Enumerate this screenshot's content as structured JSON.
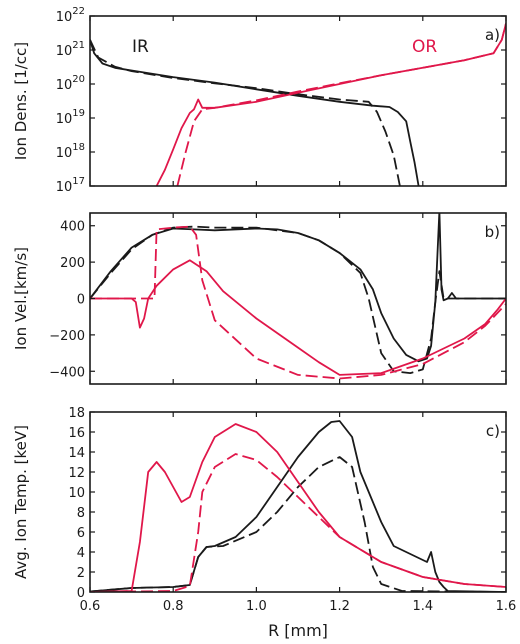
{
  "colors": {
    "IR": "#1a1a1a",
    "OR": "#e0174a"
  },
  "xaxis": {
    "label": "R [mm]",
    "min": 0.6,
    "max": 1.6,
    "ticks": [
      "0.6",
      "0.8",
      "1.0",
      "1.2",
      "1.4",
      "1.6"
    ]
  },
  "chart_data": [
    {
      "type": "line",
      "panel_label": "a)",
      "ylabel": "Ion Dens. [1/cc]",
      "yscale": "log",
      "ylim": [
        1e+17,
        1e+22
      ],
      "yticks": [
        {
          "base": "10",
          "exp": "17",
          "v": 1e+17
        },
        {
          "base": "10",
          "exp": "18",
          "v": 1e+18
        },
        {
          "base": "10",
          "exp": "19",
          "v": 1e+19
        },
        {
          "base": "10",
          "exp": "20",
          "v": 1e+20
        },
        {
          "base": "10",
          "exp": "21",
          "v": 1e+21
        },
        {
          "base": "10",
          "exp": "22",
          "v": 1e+22
        }
      ],
      "annotations": [
        "IR",
        "OR"
      ],
      "series": [
        {
          "group": "IR",
          "style": "solid",
          "points": [
            [
              0.6,
              2e+21
            ],
            [
              0.61,
              8e+20
            ],
            [
              0.63,
              4e+20
            ],
            [
              0.66,
              3e+20
            ],
            [
              0.7,
              2.5e+20
            ],
            [
              0.8,
              1.6e+20
            ],
            [
              0.9,
              1.1e+20
            ],
            [
              1.0,
              7e+19
            ],
            [
              1.1,
              4.5e+19
            ],
            [
              1.2,
              3e+19
            ],
            [
              1.28,
              2.3e+19
            ],
            [
              1.32,
              2.1e+19
            ],
            [
              1.34,
              1.5e+19
            ],
            [
              1.36,
              8e+18
            ],
            [
              1.37,
              2e+18
            ],
            [
              1.38,
              5e+17
            ],
            [
              1.39,
              1e+17
            ]
          ]
        },
        {
          "group": "IR",
          "style": "dashed",
          "points": [
            [
              0.6,
              2e+21
            ],
            [
              0.62,
              6e+20
            ],
            [
              0.66,
              3.2e+20
            ],
            [
              0.7,
              2.4e+20
            ],
            [
              0.8,
              1.5e+20
            ],
            [
              0.9,
              1.05e+20
            ],
            [
              1.0,
              7.5e+19
            ],
            [
              1.1,
              5e+19
            ],
            [
              1.2,
              3.5e+19
            ],
            [
              1.27,
              3e+19
            ],
            [
              1.29,
              1.5e+19
            ],
            [
              1.31,
              4e+18
            ],
            [
              1.33,
              8e+17
            ],
            [
              1.345,
              1e+17
            ]
          ]
        },
        {
          "group": "OR",
          "style": "solid",
          "points": [
            [
              0.76,
              1e+17
            ],
            [
              0.78,
              3e+17
            ],
            [
              0.8,
              1.2e+18
            ],
            [
              0.82,
              5e+18
            ],
            [
              0.84,
              1.4e+19
            ],
            [
              0.85,
              1.8e+19
            ],
            [
              0.86,
              3.5e+19
            ],
            [
              0.87,
              2e+19
            ],
            [
              0.9,
              2e+19
            ],
            [
              1.0,
              3e+19
            ],
            [
              1.1,
              5.5e+19
            ],
            [
              1.2,
              1e+20
            ],
            [
              1.3,
              1.8e+20
            ],
            [
              1.4,
              3e+20
            ],
            [
              1.5,
              5e+20
            ],
            [
              1.57,
              8e+20
            ],
            [
              1.59,
              2e+21
            ],
            [
              1.6,
              6e+21
            ]
          ]
        },
        {
          "group": "OR",
          "style": "dashed",
          "points": [
            [
              0.81,
              1e+17
            ],
            [
              0.83,
              1e+18
            ],
            [
              0.85,
              8e+18
            ],
            [
              0.87,
              1.8e+19
            ],
            [
              0.9,
              2e+19
            ],
            [
              1.0,
              3.3e+19
            ],
            [
              1.1,
              6e+19
            ],
            [
              1.2,
              1.05e+20
            ],
            [
              1.3,
              1.8e+20
            ],
            [
              1.4,
              3e+20
            ],
            [
              1.5,
              5e+20
            ],
            [
              1.57,
              8e+20
            ],
            [
              1.59,
              2e+21
            ],
            [
              1.6,
              6e+21
            ]
          ]
        }
      ]
    },
    {
      "type": "line",
      "panel_label": "b)",
      "ylabel": "Ion Vel.[km/s]",
      "yscale": "linear",
      "ylim": [
        -470,
        470
      ],
      "yticks": [
        {
          "label": "−400",
          "v": -400
        },
        {
          "label": "−200",
          "v": -200
        },
        {
          "label": "0",
          "v": 0
        },
        {
          "label": "200",
          "v": 200
        },
        {
          "label": "400",
          "v": 400
        }
      ],
      "series": [
        {
          "group": "IR",
          "style": "solid",
          "points": [
            [
              0.6,
              0
            ],
            [
              0.65,
              150
            ],
            [
              0.7,
              280
            ],
            [
              0.75,
              350
            ],
            [
              0.8,
              385
            ],
            [
              0.85,
              380
            ],
            [
              0.9,
              375
            ],
            [
              1.0,
              385
            ],
            [
              1.05,
              380
            ],
            [
              1.1,
              360
            ],
            [
              1.15,
              320
            ],
            [
              1.2,
              250
            ],
            [
              1.25,
              160
            ],
            [
              1.28,
              50
            ],
            [
              1.3,
              -80
            ],
            [
              1.33,
              -220
            ],
            [
              1.36,
              -310
            ],
            [
              1.39,
              -345
            ],
            [
              1.41,
              -330
            ],
            [
              1.42,
              -260
            ],
            [
              1.43,
              -20
            ],
            [
              1.44,
              480
            ],
            [
              1.445,
              50
            ],
            [
              1.45,
              -10
            ],
            [
              1.46,
              0
            ],
            [
              1.47,
              30
            ],
            [
              1.48,
              0
            ],
            [
              1.6,
              0
            ]
          ]
        },
        {
          "group": "IR",
          "style": "dashed",
          "points": [
            [
              0.6,
              0
            ],
            [
              0.65,
              140
            ],
            [
              0.7,
              270
            ],
            [
              0.75,
              350
            ],
            [
              0.8,
              390
            ],
            [
              0.85,
              395
            ],
            [
              0.9,
              390
            ],
            [
              1.0,
              390
            ],
            [
              1.1,
              360
            ],
            [
              1.15,
              320
            ],
            [
              1.2,
              250
            ],
            [
              1.25,
              140
            ],
            [
              1.27,
              0
            ],
            [
              1.3,
              -300
            ],
            [
              1.33,
              -400
            ],
            [
              1.37,
              -410
            ],
            [
              1.4,
              -390
            ],
            [
              1.42,
              -220
            ],
            [
              1.43,
              -20
            ],
            [
              1.44,
              150
            ],
            [
              1.45,
              0
            ],
            [
              1.6,
              0
            ]
          ]
        },
        {
          "group": "OR",
          "style": "solid",
          "points": [
            [
              0.6,
              0
            ],
            [
              0.7,
              0
            ],
            [
              0.71,
              -20
            ],
            [
              0.72,
              -160
            ],
            [
              0.73,
              -110
            ],
            [
              0.74,
              0
            ],
            [
              0.76,
              70
            ],
            [
              0.8,
              160
            ],
            [
              0.84,
              210
            ],
            [
              0.88,
              150
            ],
            [
              0.92,
              40
            ],
            [
              1.0,
              -110
            ],
            [
              1.1,
              -270
            ],
            [
              1.15,
              -350
            ],
            [
              1.2,
              -420
            ],
            [
              1.3,
              -410
            ],
            [
              1.4,
              -330
            ],
            [
              1.5,
              -220
            ],
            [
              1.55,
              -140
            ],
            [
              1.58,
              -60
            ],
            [
              1.6,
              0
            ]
          ]
        },
        {
          "group": "OR",
          "style": "dashed",
          "points": [
            [
              0.6,
              0
            ],
            [
              0.755,
              0
            ],
            [
              0.76,
              380
            ],
            [
              0.8,
              390
            ],
            [
              0.84,
              395
            ],
            [
              0.855,
              350
            ],
            [
              0.87,
              100
            ],
            [
              0.9,
              -120
            ],
            [
              1.0,
              -330
            ],
            [
              1.1,
              -420
            ],
            [
              1.2,
              -440
            ],
            [
              1.3,
              -420
            ],
            [
              1.4,
              -360
            ],
            [
              1.5,
              -240
            ],
            [
              1.55,
              -150
            ],
            [
              1.6,
              -30
            ]
          ]
        }
      ]
    },
    {
      "type": "line",
      "panel_label": "c)",
      "ylabel": "Avg. Ion Temp. [keV]",
      "yscale": "linear",
      "ylim": [
        0,
        18
      ],
      "yticks": [
        {
          "label": "0",
          "v": 0
        },
        {
          "label": "2",
          "v": 2
        },
        {
          "label": "4",
          "v": 4
        },
        {
          "label": "6",
          "v": 6
        },
        {
          "label": "8",
          "v": 8
        },
        {
          "label": "10",
          "v": 10
        },
        {
          "label": "12",
          "v": 12
        },
        {
          "label": "14",
          "v": 14
        },
        {
          "label": "16",
          "v": 16
        },
        {
          "label": "18",
          "v": 18
        }
      ],
      "series": [
        {
          "group": "IR",
          "style": "solid",
          "points": [
            [
              0.6,
              0.05
            ],
            [
              0.7,
              0.4
            ],
            [
              0.8,
              0.5
            ],
            [
              0.84,
              0.7
            ],
            [
              0.86,
              3.5
            ],
            [
              0.88,
              4.5
            ],
            [
              0.9,
              4.6
            ],
            [
              0.95,
              5.5
            ],
            [
              1.0,
              7.5
            ],
            [
              1.05,
              10.5
            ],
            [
              1.1,
              13.5
            ],
            [
              1.15,
              16
            ],
            [
              1.18,
              17
            ],
            [
              1.2,
              17.1
            ],
            [
              1.23,
              15.5
            ],
            [
              1.25,
              12
            ],
            [
              1.3,
              7
            ],
            [
              1.33,
              4.6
            ],
            [
              1.38,
              3.6
            ],
            [
              1.41,
              3
            ],
            [
              1.42,
              4
            ],
            [
              1.43,
              2
            ],
            [
              1.44,
              1
            ],
            [
              1.45,
              0.5
            ],
            [
              1.46,
              0.1
            ],
            [
              1.6,
              0
            ]
          ]
        },
        {
          "group": "IR",
          "style": "dashed",
          "points": [
            [
              0.6,
              0.05
            ],
            [
              0.7,
              0.4
            ],
            [
              0.8,
              0.5
            ],
            [
              0.84,
              0.7
            ],
            [
              0.86,
              3.5
            ],
            [
              0.88,
              4.5
            ],
            [
              0.92,
              4.6
            ],
            [
              1.0,
              6
            ],
            [
              1.05,
              8
            ],
            [
              1.1,
              10.5
            ],
            [
              1.15,
              12.5
            ],
            [
              1.2,
              13.5
            ],
            [
              1.23,
              12.5
            ],
            [
              1.26,
              7
            ],
            [
              1.28,
              2.5
            ],
            [
              1.3,
              0.8
            ],
            [
              1.35,
              0.1
            ],
            [
              1.6,
              0
            ]
          ]
        },
        {
          "group": "OR",
          "style": "solid",
          "points": [
            [
              0.6,
              0
            ],
            [
              0.7,
              0.1
            ],
            [
              0.72,
              5
            ],
            [
              0.74,
              12
            ],
            [
              0.76,
              13
            ],
            [
              0.78,
              12
            ],
            [
              0.8,
              10.5
            ],
            [
              0.82,
              9
            ],
            [
              0.84,
              9.5
            ],
            [
              0.87,
              13
            ],
            [
              0.9,
              15.5
            ],
            [
              0.95,
              16.8
            ],
            [
              1.0,
              16
            ],
            [
              1.05,
              14
            ],
            [
              1.1,
              11
            ],
            [
              1.15,
              8
            ],
            [
              1.2,
              5.5
            ],
            [
              1.3,
              3
            ],
            [
              1.4,
              1.5
            ],
            [
              1.5,
              0.8
            ],
            [
              1.6,
              0.5
            ]
          ]
        },
        {
          "group": "OR",
          "style": "dashed",
          "points": [
            [
              0.6,
              0
            ],
            [
              0.8,
              0.1
            ],
            [
              0.84,
              0.6
            ],
            [
              0.86,
              6
            ],
            [
              0.87,
              10
            ],
            [
              0.9,
              12.5
            ],
            [
              0.95,
              13.8
            ],
            [
              1.0,
              13.2
            ],
            [
              1.05,
              11.5
            ],
            [
              1.1,
              9.5
            ],
            [
              1.15,
              7.5
            ],
            [
              1.2,
              5.5
            ],
            [
              1.3,
              3
            ],
            [
              1.4,
              1.5
            ],
            [
              1.5,
              0.8
            ],
            [
              1.6,
              0.5
            ]
          ]
        }
      ]
    }
  ]
}
